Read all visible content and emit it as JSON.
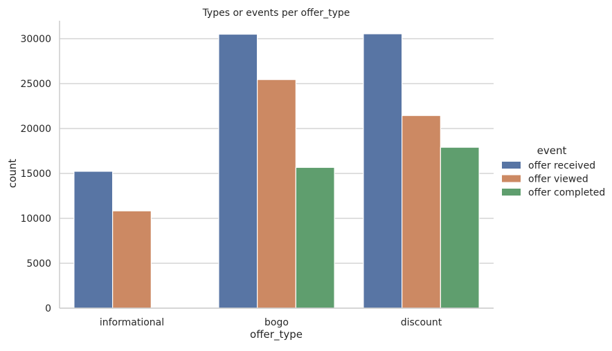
{
  "chart_data": {
    "type": "bar",
    "title": "Types or events per offer_type",
    "xlabel": "offer_type",
    "ylabel": "count",
    "categories": [
      "informational",
      "bogo",
      "discount"
    ],
    "series": [
      {
        "name": "offer received",
        "values": [
          15235,
          30499,
          30543
        ]
      },
      {
        "name": "offer viewed",
        "values": [
          10831,
          25449,
          21445
        ]
      },
      {
        "name": "offer completed",
        "values": [
          0,
          15669,
          17910
        ]
      }
    ],
    "colors": [
      "#5875a4",
      "#cc8963",
      "#5f9e6e"
    ],
    "ylim": [
      0,
      32000
    ],
    "yticks": [
      "0",
      "5000",
      "10000",
      "15000",
      "20000",
      "25000",
      "30000"
    ],
    "grid": true,
    "legend_title": "event",
    "legend_position": "right"
  }
}
